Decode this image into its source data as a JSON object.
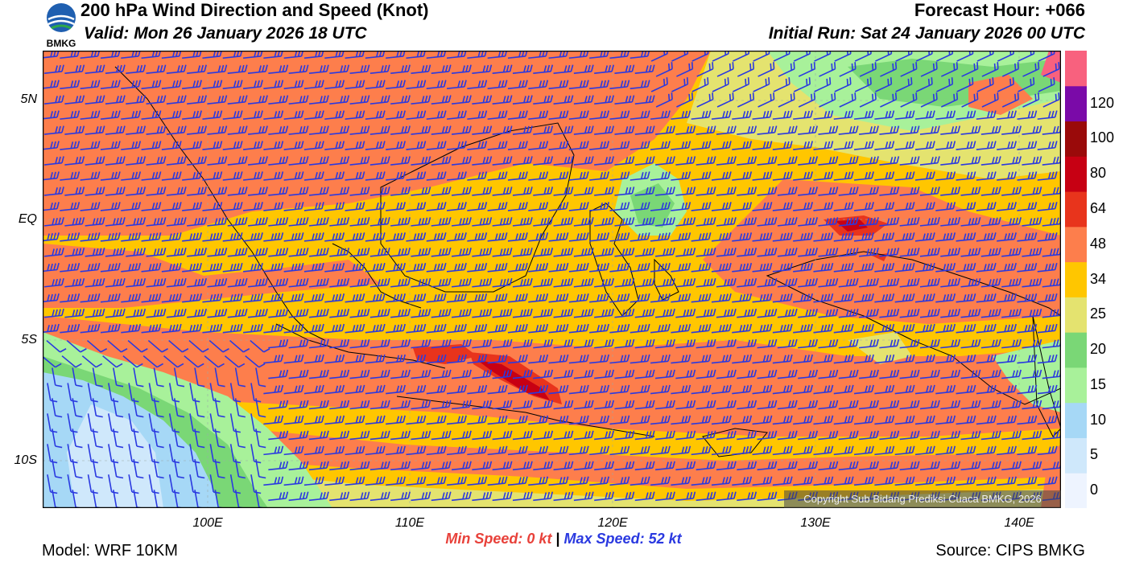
{
  "header": {
    "title": "200 hPa Wind Direction and Speed (Knot)",
    "valid": "Valid: Mon 26 January 2026 18 UTC",
    "forecast_hour": "Forecast Hour: +066",
    "initial_run": "Initial Run: Sat 24 January 2026 00 UTC",
    "logo_text": "BMKG"
  },
  "map": {
    "lat_labels": [
      "5N",
      "EQ",
      "5S",
      "10S"
    ],
    "lon_labels": [
      "100E",
      "110E",
      "120E",
      "130E",
      "140E"
    ],
    "lat_range": [
      -12,
      7
    ],
    "lon_range": [
      92,
      142
    ],
    "barb_color": "#2a39e0",
    "copyright": "Copyright Sub Bidang Prediksi Cuaca BMKG, 2026"
  },
  "colorbar": {
    "labels": [
      "0",
      "5",
      "10",
      "15",
      "20",
      "25",
      "34",
      "48",
      "64",
      "80",
      "100",
      "120"
    ],
    "colors": [
      "#eef4ff",
      "#cfe8fb",
      "#a6d8f6",
      "#a8f19a",
      "#7ad776",
      "#e4e36f",
      "#ffc600",
      "#fd7e4c",
      "#e8341c",
      "#c70013",
      "#9a0a0a",
      "#7a0aa8",
      "#f8617e"
    ]
  },
  "footer": {
    "min_speed_label": "Min Speed:",
    "min_speed_value": "0 kt",
    "separator": "|",
    "max_speed_label": "Max Speed:",
    "max_speed_value": "52 kt",
    "model": "Model: WRF 10KM",
    "source": "Source: CIPS BMKG"
  }
}
